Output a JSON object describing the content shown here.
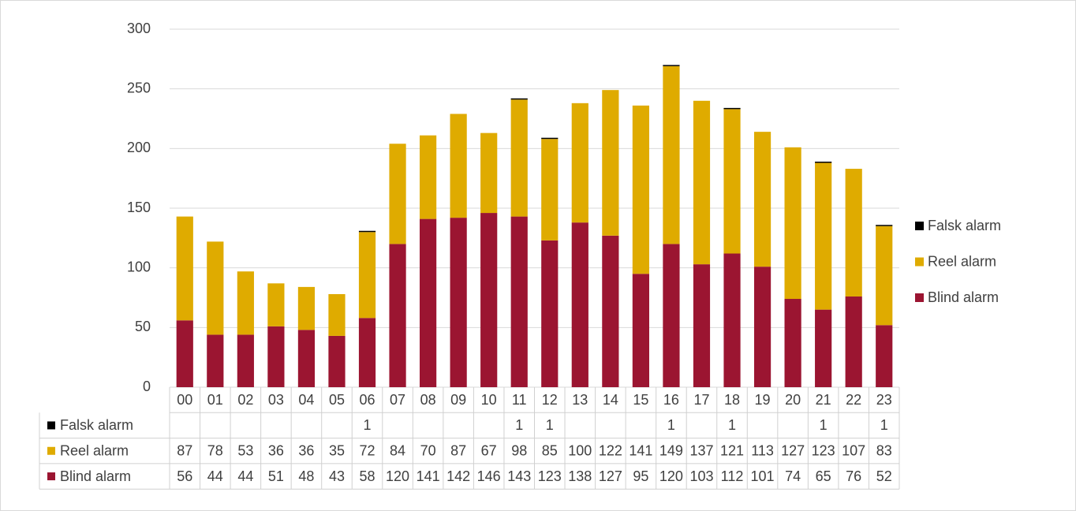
{
  "chart_data": {
    "type": "bar",
    "stacked": true,
    "categories": [
      "00",
      "01",
      "02",
      "03",
      "04",
      "05",
      "06",
      "07",
      "08",
      "09",
      "10",
      "11",
      "12",
      "13",
      "14",
      "15",
      "16",
      "17",
      "18",
      "19",
      "20",
      "21",
      "22",
      "23"
    ],
    "series": [
      {
        "name": "Blind alarm",
        "color": "#9b1531",
        "values": [
          56,
          44,
          44,
          51,
          48,
          43,
          58,
          120,
          141,
          142,
          146,
          143,
          123,
          138,
          127,
          95,
          120,
          103,
          112,
          101,
          74,
          65,
          76,
          52
        ]
      },
      {
        "name": "Reel alarm",
        "color": "#dfab00",
        "values": [
          87,
          78,
          53,
          36,
          36,
          35,
          72,
          84,
          70,
          87,
          67,
          98,
          85,
          100,
          122,
          141,
          149,
          137,
          121,
          113,
          127,
          123,
          107,
          83
        ]
      },
      {
        "name": "Falsk alarm",
        "color": "#000000",
        "values": [
          null,
          null,
          null,
          null,
          null,
          null,
          1,
          null,
          null,
          null,
          null,
          1,
          1,
          null,
          null,
          null,
          1,
          null,
          1,
          null,
          null,
          1,
          null,
          1
        ]
      }
    ],
    "ylim": [
      0,
      300
    ],
    "yticks": [
      0,
      50,
      100,
      150,
      200,
      250,
      300
    ],
    "grid": true,
    "legend": "right",
    "data_table": true
  }
}
